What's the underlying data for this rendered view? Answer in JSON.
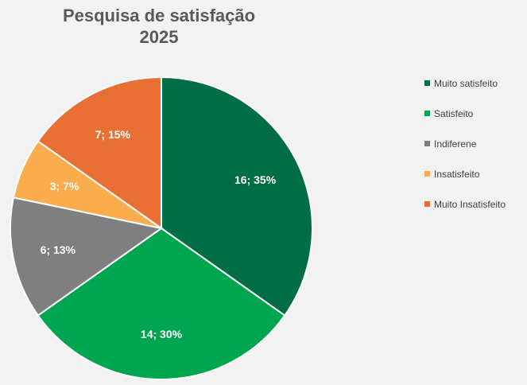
{
  "chart_data": {
    "type": "pie",
    "title_lines": [
      "Pesquisa de satisfação",
      "2025"
    ],
    "slices": [
      {
        "label": "Muito satisfeito",
        "value": 16,
        "percent": "35%",
        "color": "#006d44"
      },
      {
        "label": "Satisfeito",
        "value": 14,
        "percent": "30%",
        "color": "#00a64f"
      },
      {
        "label": "Indiferene",
        "value": 6,
        "percent": "13%",
        "color": "#7f7f7f"
      },
      {
        "label": "Insatisfeito",
        "value": 3,
        "percent": "7%",
        "color": "#fbac4c"
      },
      {
        "label": "Muito Insatisfeito",
        "value": 7,
        "percent": "15%",
        "color": "#e97034"
      }
    ],
    "data_label_format": "value; percent",
    "legend_position": "right"
  }
}
